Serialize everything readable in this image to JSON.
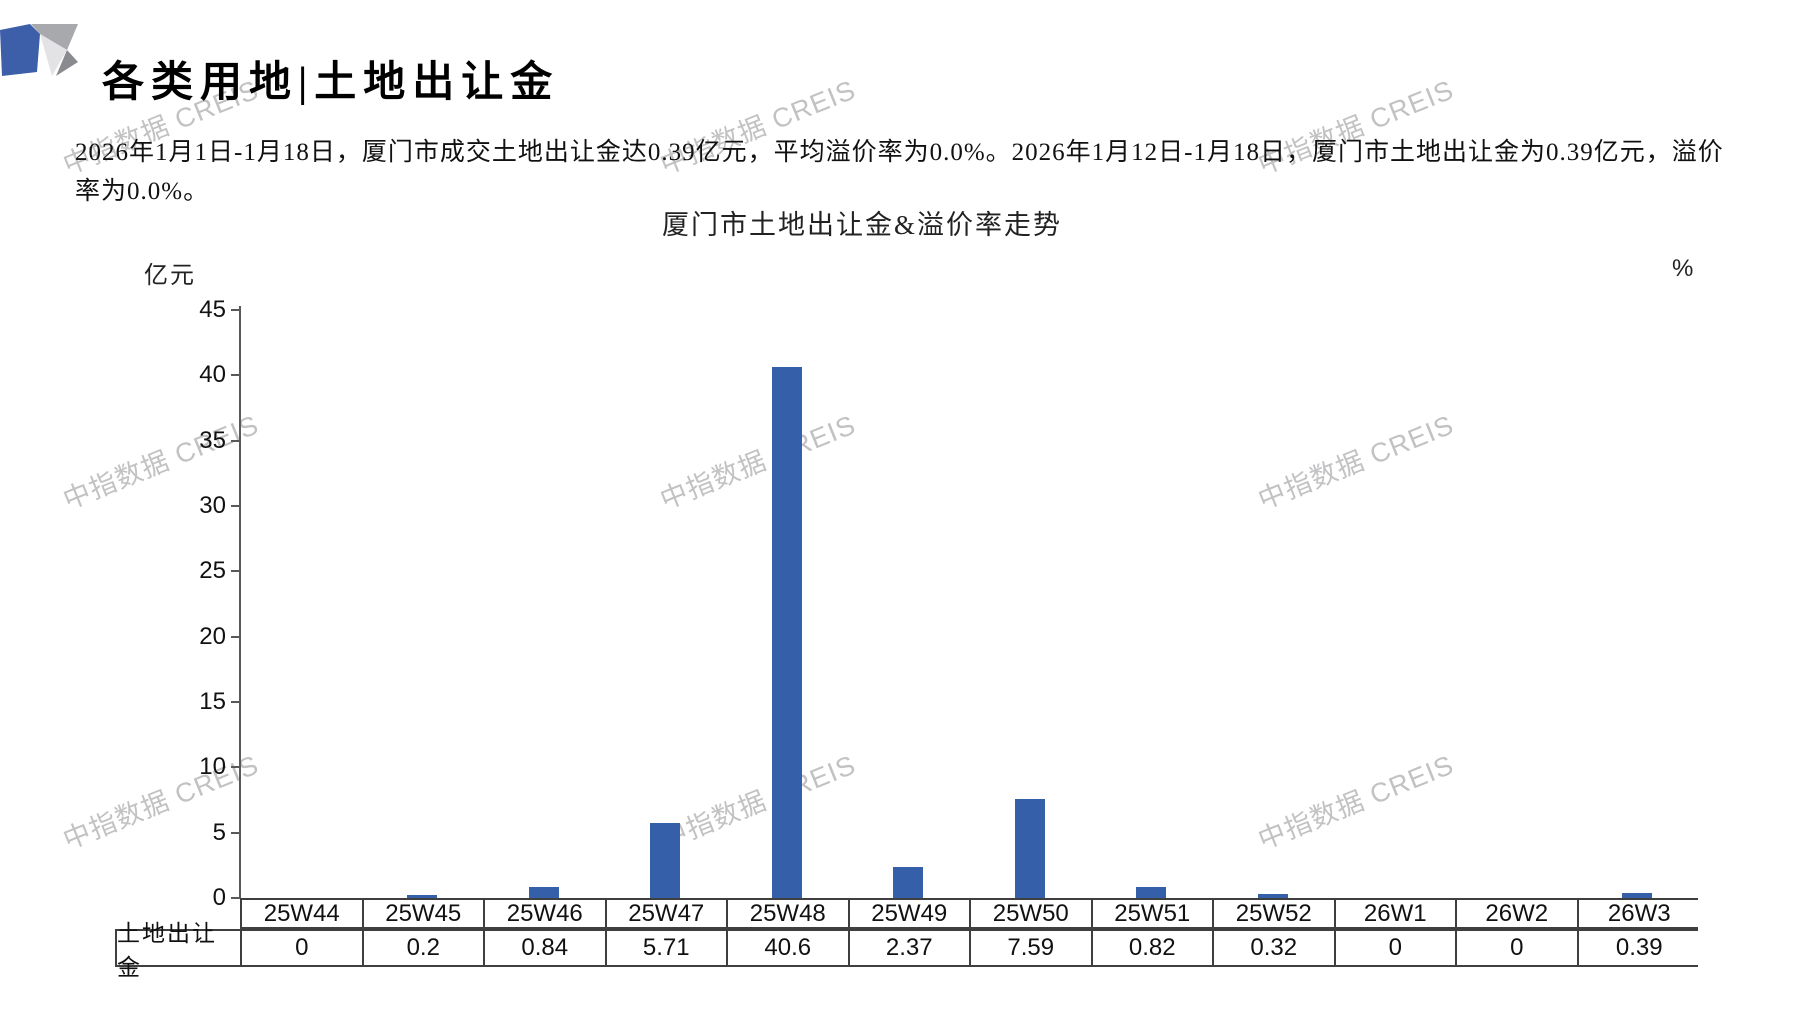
{
  "header": {
    "title": "各类用地|土地出让金"
  },
  "summary": {
    "text": "2026年1月1日-1月18日，厦门市成交土地出让金达0.39亿元，平均溢价率为0.0%。2026年1月12日-1月18日，厦门市土地出让金为0.39亿元，溢价率为0.0%。"
  },
  "watermark": {
    "text": "中指数据 CREIS"
  },
  "chart_data": {
    "type": "bar",
    "title": "厦门市土地出让金&溢价率走势",
    "left_axis_unit": "亿元",
    "right_axis_unit": "%",
    "categories": [
      "25W44",
      "25W45",
      "25W46",
      "25W47",
      "25W48",
      "25W49",
      "25W50",
      "25W51",
      "25W52",
      "26W1",
      "26W2",
      "26W3"
    ],
    "series": [
      {
        "name": "土地出让金",
        "values": [
          0,
          0.2,
          0.84,
          5.71,
          40.6,
          2.37,
          7.59,
          0.82,
          0.32,
          0,
          0,
          0.39
        ]
      }
    ],
    "display_values": [
      "0",
      "0.2",
      "0.84",
      "5.71",
      "40.6",
      "2.37",
      "7.59",
      "0.82",
      "0.32",
      "0",
      "0",
      "0.39"
    ],
    "ylim": [
      0,
      45
    ],
    "ytick_step": 5,
    "yticks": [
      0,
      5,
      10,
      15,
      20,
      25,
      30,
      35,
      40,
      45
    ],
    "grid": false,
    "legend_position": "none",
    "bar_color": "#355FA8"
  },
  "logo_colors": {
    "blue": "#3D5FA9",
    "gray_mid": "#a8a9ac",
    "gray_light": "#e3e3e5",
    "gray_dark": "#8a8b8e"
  }
}
